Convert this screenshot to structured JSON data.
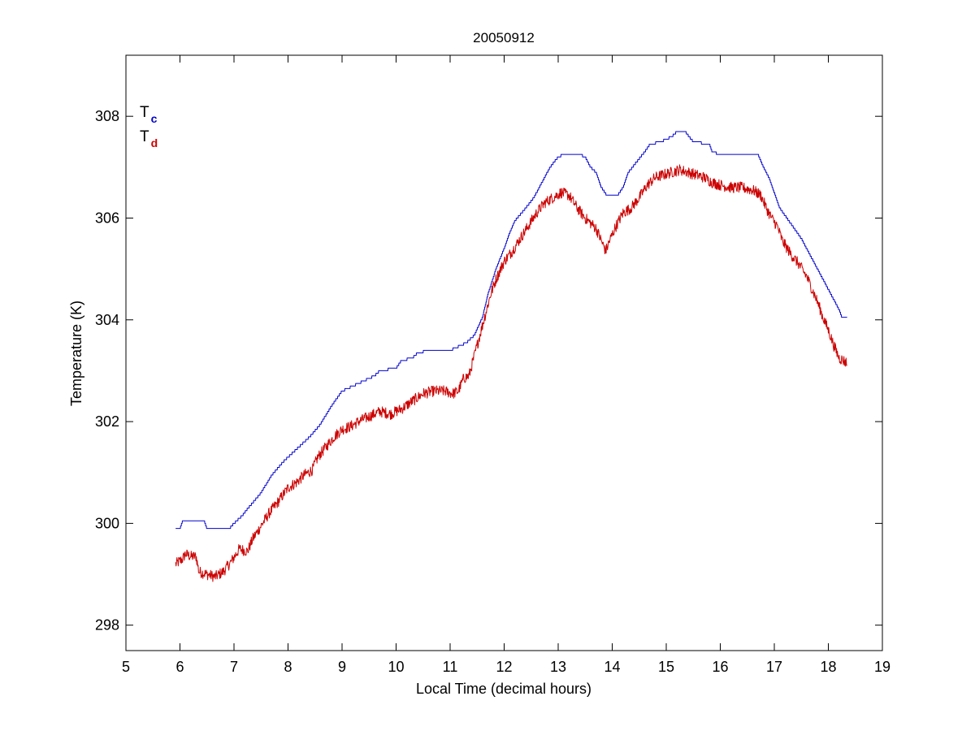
{
  "chart_data": {
    "type": "line",
    "title": "20050912",
    "xlabel": "Local Time (decimal hours)",
    "ylabel": "Temperature (K)",
    "xlim": [
      5,
      19
    ],
    "ylim": [
      297.5,
      309.2
    ],
    "xticks": [
      5,
      6,
      7,
      8,
      9,
      10,
      11,
      12,
      13,
      14,
      15,
      16,
      17,
      18,
      19
    ],
    "yticks": [
      298,
      300,
      302,
      304,
      306,
      308
    ],
    "grid": false,
    "legend": {
      "placement": "top-left",
      "entries": [
        {
          "main": "T",
          "sub": "c",
          "color": "#0000cc"
        },
        {
          "main": "T",
          "sub": "d",
          "color": "#cc0000"
        }
      ]
    },
    "series": [
      {
        "name": "Tc",
        "color": "#0000cc",
        "style": "stepped",
        "points": [
          [
            5.92,
            299.88
          ],
          [
            6.0,
            299.9
          ],
          [
            6.05,
            300.05
          ],
          [
            6.2,
            300.05
          ],
          [
            6.45,
            300.05
          ],
          [
            6.5,
            299.9
          ],
          [
            6.6,
            299.88
          ],
          [
            6.9,
            299.88
          ],
          [
            7.0,
            300.0
          ],
          [
            7.15,
            300.15
          ],
          [
            7.3,
            300.35
          ],
          [
            7.5,
            300.6
          ],
          [
            7.7,
            300.95
          ],
          [
            7.9,
            301.2
          ],
          [
            8.0,
            301.3
          ],
          [
            8.2,
            301.5
          ],
          [
            8.4,
            301.7
          ],
          [
            8.6,
            301.95
          ],
          [
            8.8,
            302.3
          ],
          [
            9.0,
            302.6
          ],
          [
            9.1,
            302.65
          ],
          [
            9.3,
            302.75
          ],
          [
            9.6,
            302.9
          ],
          [
            9.7,
            303.0
          ],
          [
            10.0,
            303.05
          ],
          [
            10.1,
            303.2
          ],
          [
            10.3,
            303.25
          ],
          [
            10.4,
            303.35
          ],
          [
            10.6,
            303.4
          ],
          [
            11.0,
            303.4
          ],
          [
            11.2,
            303.5
          ],
          [
            11.3,
            303.55
          ],
          [
            11.45,
            303.7
          ],
          [
            11.6,
            304.05
          ],
          [
            11.7,
            304.5
          ],
          [
            11.85,
            305.0
          ],
          [
            12.0,
            305.4
          ],
          [
            12.1,
            305.7
          ],
          [
            12.2,
            305.95
          ],
          [
            12.4,
            306.2
          ],
          [
            12.55,
            306.4
          ],
          [
            12.7,
            306.7
          ],
          [
            12.85,
            307.0
          ],
          [
            13.0,
            307.2
          ],
          [
            13.1,
            307.25
          ],
          [
            13.4,
            307.25
          ],
          [
            13.5,
            307.2
          ],
          [
            13.6,
            307.0
          ],
          [
            13.7,
            306.9
          ],
          [
            13.8,
            306.6
          ],
          [
            13.9,
            306.45
          ],
          [
            14.1,
            306.45
          ],
          [
            14.2,
            306.6
          ],
          [
            14.3,
            306.9
          ],
          [
            14.45,
            307.1
          ],
          [
            14.6,
            307.3
          ],
          [
            14.7,
            307.45
          ],
          [
            14.9,
            307.5
          ],
          [
            15.1,
            307.6
          ],
          [
            15.2,
            307.7
          ],
          [
            15.35,
            307.7
          ],
          [
            15.5,
            307.5
          ],
          [
            15.8,
            307.45
          ],
          [
            15.85,
            307.3
          ],
          [
            16.0,
            307.25
          ],
          [
            16.7,
            307.25
          ],
          [
            16.8,
            307.0
          ],
          [
            16.9,
            306.8
          ],
          [
            17.0,
            306.5
          ],
          [
            17.1,
            306.2
          ],
          [
            17.3,
            305.9
          ],
          [
            17.5,
            305.6
          ],
          [
            17.7,
            305.2
          ],
          [
            17.85,
            304.9
          ],
          [
            18.0,
            304.6
          ],
          [
            18.1,
            304.4
          ],
          [
            18.2,
            304.2
          ],
          [
            18.25,
            304.05
          ],
          [
            18.35,
            304.05
          ]
        ]
      },
      {
        "name": "Td",
        "color": "#cc0000",
        "style": "noisy",
        "points": [
          [
            5.92,
            299.2
          ],
          [
            6.05,
            299.3
          ],
          [
            6.1,
            299.4
          ],
          [
            6.2,
            299.35
          ],
          [
            6.3,
            299.35
          ],
          [
            6.35,
            299.05
          ],
          [
            6.5,
            299.0
          ],
          [
            6.65,
            298.95
          ],
          [
            6.8,
            299.05
          ],
          [
            6.95,
            299.25
          ],
          [
            7.1,
            299.5
          ],
          [
            7.25,
            299.45
          ],
          [
            7.35,
            299.7
          ],
          [
            7.5,
            299.95
          ],
          [
            7.65,
            300.2
          ],
          [
            7.8,
            300.4
          ],
          [
            7.9,
            300.55
          ],
          [
            8.0,
            300.7
          ],
          [
            8.15,
            300.8
          ],
          [
            8.3,
            300.95
          ],
          [
            8.45,
            301.05
          ],
          [
            8.55,
            301.3
          ],
          [
            8.7,
            301.5
          ],
          [
            8.85,
            301.7
          ],
          [
            9.0,
            301.85
          ],
          [
            9.15,
            301.9
          ],
          [
            9.3,
            302.0
          ],
          [
            9.5,
            302.1
          ],
          [
            9.7,
            302.2
          ],
          [
            9.9,
            302.15
          ],
          [
            10.1,
            302.25
          ],
          [
            10.3,
            302.4
          ],
          [
            10.5,
            302.55
          ],
          [
            10.7,
            302.6
          ],
          [
            10.9,
            302.6
          ],
          [
            11.05,
            302.55
          ],
          [
            11.15,
            302.6
          ],
          [
            11.25,
            302.85
          ],
          [
            11.35,
            302.9
          ],
          [
            11.45,
            303.3
          ],
          [
            11.55,
            303.7
          ],
          [
            11.65,
            304.1
          ],
          [
            11.75,
            304.5
          ],
          [
            11.85,
            304.8
          ],
          [
            12.0,
            305.15
          ],
          [
            12.15,
            305.35
          ],
          [
            12.3,
            305.6
          ],
          [
            12.45,
            305.85
          ],
          [
            12.6,
            306.1
          ],
          [
            12.75,
            306.3
          ],
          [
            12.9,
            306.4
          ],
          [
            13.05,
            306.5
          ],
          [
            13.2,
            306.45
          ],
          [
            13.35,
            306.2
          ],
          [
            13.5,
            306.0
          ],
          [
            13.6,
            305.9
          ],
          [
            13.7,
            305.8
          ],
          [
            13.8,
            305.55
          ],
          [
            13.88,
            305.35
          ],
          [
            13.95,
            305.55
          ],
          [
            14.05,
            305.8
          ],
          [
            14.2,
            306.1
          ],
          [
            14.35,
            306.2
          ],
          [
            14.5,
            306.4
          ],
          [
            14.65,
            306.65
          ],
          [
            14.8,
            306.8
          ],
          [
            14.95,
            306.85
          ],
          [
            15.1,
            306.9
          ],
          [
            15.25,
            306.95
          ],
          [
            15.4,
            306.9
          ],
          [
            15.55,
            306.85
          ],
          [
            15.7,
            306.8
          ],
          [
            15.85,
            306.7
          ],
          [
            16.0,
            306.65
          ],
          [
            16.2,
            306.6
          ],
          [
            16.4,
            306.6
          ],
          [
            16.6,
            306.55
          ],
          [
            16.75,
            306.45
          ],
          [
            16.85,
            306.2
          ],
          [
            16.95,
            306.0
          ],
          [
            17.05,
            305.85
          ],
          [
            17.15,
            305.55
          ],
          [
            17.3,
            305.3
          ],
          [
            17.45,
            305.1
          ],
          [
            17.6,
            304.85
          ],
          [
            17.7,
            304.6
          ],
          [
            17.8,
            304.35
          ],
          [
            17.9,
            304.05
          ],
          [
            18.0,
            303.8
          ],
          [
            18.1,
            303.5
          ],
          [
            18.2,
            303.25
          ],
          [
            18.28,
            303.2
          ],
          [
            18.35,
            303.15
          ]
        ]
      }
    ]
  }
}
